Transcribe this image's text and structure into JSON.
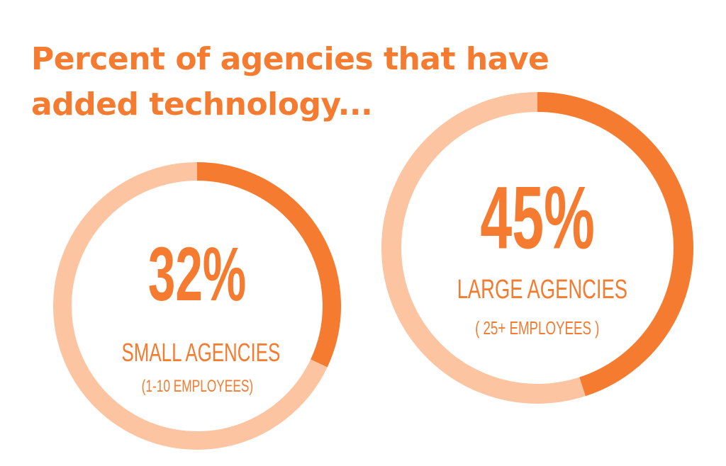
{
  "colors": {
    "accent": "#f47b2f",
    "track": "#fcc4a0"
  },
  "chart_data": {
    "type": "pie",
    "title_lines": [
      "Percent of agencies that have",
      "added technology..."
    ],
    "charts": [
      {
        "value": 32,
        "value_label": "32%",
        "label": "SMALL AGENCIES",
        "sublabel": "(1-10 EMPLOYEES)"
      },
      {
        "value": 45,
        "value_label": "45%",
        "label": "LARGE AGENCIES",
        "sublabel": "( 25+ EMPLOYEES )"
      }
    ]
  }
}
